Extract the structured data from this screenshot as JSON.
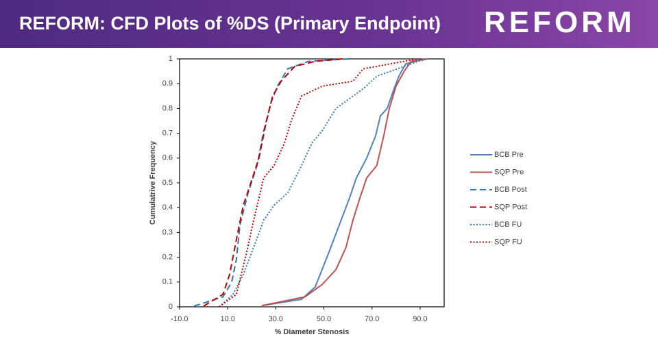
{
  "header": {
    "title": "REFORM: CFD Plots of %DS (Primary Endpoint)",
    "logo": "REFORM"
  },
  "chart_data": {
    "type": "line",
    "x_label": "% Diameter Stenosis",
    "y_label": "Cumulatrive Frequency",
    "xlim": [
      -10,
      100
    ],
    "ylim": [
      0,
      1
    ],
    "xticks": [
      {
        "value": -10,
        "label": "-10.0"
      },
      {
        "value": 10,
        "label": "10.0"
      },
      {
        "value": 30,
        "label": "30.0"
      },
      {
        "value": 50,
        "label": "50.0"
      },
      {
        "value": 70,
        "label": "70.0"
      },
      {
        "value": 90,
        "label": "90.0"
      }
    ],
    "yticks": [
      0,
      0.1,
      0.2,
      0.3,
      0.4,
      0.5,
      0.6,
      0.7,
      0.8,
      0.9,
      1
    ],
    "legend": "right",
    "series": [
      {
        "name": "BCB Pre",
        "color": "#4f81bd",
        "dash": "solid",
        "x": [
          24.2,
          40.7,
          46.4,
          47.2,
          52.1,
          56.4,
          60.7,
          63.5,
          67.8,
          71.5,
          73.5,
          76.3,
          79.2,
          81.2,
          84,
          92
        ],
        "values": [
          0.005,
          0.03,
          0.08,
          0.1,
          0.22,
          0.33,
          0.44,
          0.52,
          0.6,
          0.69,
          0.77,
          0.8,
          0.88,
          0.93,
          0.98,
          1
        ]
      },
      {
        "name": "SQP Pre",
        "color": "#c0504d",
        "dash": "solid",
        "x": [
          24.2,
          42.1,
          49.3,
          55,
          59.2,
          62.1,
          65,
          67.8,
          72,
          74.9,
          77.2,
          80,
          83.4,
          86.3,
          93.4
        ],
        "values": [
          0.005,
          0.04,
          0.09,
          0.15,
          0.24,
          0.35,
          0.44,
          0.52,
          0.57,
          0.69,
          0.8,
          0.89,
          0.95,
          0.99,
          1
        ]
      },
      {
        "name": "BCB Post",
        "color": "#2e75b6",
        "dash": "dashed",
        "x": [
          -4,
          8,
          11.7,
          13.6,
          15.1,
          18.5,
          22.2,
          25,
          27.9,
          30.7,
          35,
          43.6,
          60.7
        ],
        "values": [
          0.003,
          0.04,
          0.1,
          0.19,
          0.33,
          0.46,
          0.57,
          0.71,
          0.82,
          0.89,
          0.96,
          0.99,
          1
        ]
      },
      {
        "name": "SQP Post",
        "color": "#c00000",
        "dash": "dashed",
        "x": [
          0,
          8,
          10.8,
          13.6,
          16.5,
          19.3,
          23,
          25.9,
          28.7,
          32.2,
          37.9,
          46.4,
          57.8
        ],
        "values": [
          0.003,
          0.05,
          0.13,
          0.27,
          0.41,
          0.49,
          0.6,
          0.74,
          0.85,
          0.91,
          0.97,
          0.99,
          1
        ]
      },
      {
        "name": "BCB FU",
        "color": "#2e75b6",
        "dash": "dotted",
        "x": [
          6.5,
          12.2,
          16.5,
          20.8,
          25,
          29.3,
          35,
          40.7,
          45,
          49.3,
          55,
          60.7,
          66.4,
          72,
          80.6,
          89.1,
          93.4
        ],
        "values": [
          0,
          0.05,
          0.13,
          0.24,
          0.35,
          0.41,
          0.46,
          0.57,
          0.66,
          0.71,
          0.8,
          0.84,
          0.88,
          0.93,
          0.96,
          0.99,
          1
        ]
      },
      {
        "name": "SQP FU",
        "color": "#c00000",
        "dash": "dotted",
        "x": [
          6.5,
          13.6,
          17.9,
          20.8,
          25,
          29.3,
          33.6,
          36.4,
          40.7,
          49.3,
          62.1,
          66.4,
          77.7,
          89.1
        ],
        "values": [
          0,
          0.05,
          0.22,
          0.35,
          0.52,
          0.57,
          0.66,
          0.75,
          0.85,
          0.89,
          0.91,
          0.96,
          0.98,
          1
        ]
      }
    ]
  }
}
